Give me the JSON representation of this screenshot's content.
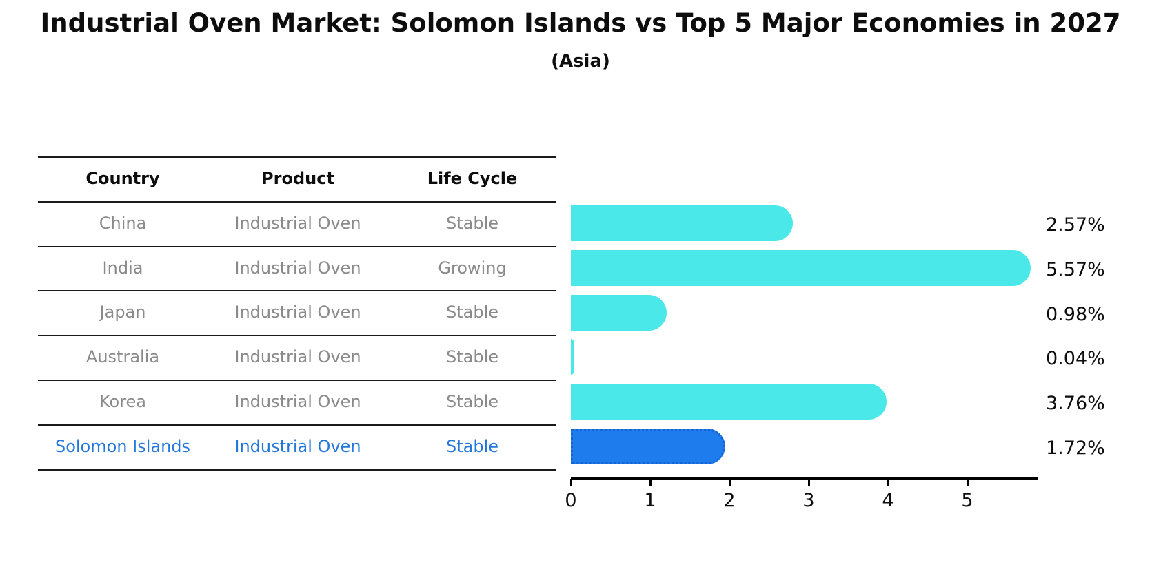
{
  "header": {
    "title": "Industrial Oven Market: Solomon Islands vs Top 5 Major Economies in 2027",
    "subtitle": "(Asia)"
  },
  "table": {
    "headers": [
      "Country",
      "Product",
      "Life Cycle"
    ],
    "rows": [
      {
        "country": "China",
        "product": "Industrial Oven",
        "life_cycle": "Stable",
        "highlight": false
      },
      {
        "country": "India",
        "product": "Industrial Oven",
        "life_cycle": "Growing",
        "highlight": false
      },
      {
        "country": "Japan",
        "product": "Industrial Oven",
        "life_cycle": "Stable",
        "highlight": false
      },
      {
        "country": "Australia",
        "product": "Industrial Oven",
        "life_cycle": "Stable",
        "highlight": false
      },
      {
        "country": "Korea",
        "product": "Industrial Oven",
        "life_cycle": "Stable",
        "highlight": false
      },
      {
        "country": "Solomon Islands",
        "product": "Industrial Oven",
        "life_cycle": "Stable",
        "highlight": true
      }
    ]
  },
  "chart_data": {
    "type": "bar",
    "orientation": "horizontal",
    "title": "Industrial Oven Market: Solomon Islands vs Top 5 Major Economies in 2027 (Asia)",
    "categories": [
      "China",
      "India",
      "Japan",
      "Australia",
      "Korea",
      "Solomon Islands"
    ],
    "values": [
      2.57,
      5.57,
      0.98,
      0.04,
      3.76,
      1.72
    ],
    "value_labels": [
      "2.57%",
      "5.57%",
      "0.98%",
      "0.04%",
      "3.76%",
      "1.72%"
    ],
    "xticks": [
      0,
      1,
      2,
      3,
      4,
      5
    ],
    "xlim": [
      0,
      5.89
    ],
    "grid": false,
    "legend": "none",
    "bar_color": "#4ae8e8",
    "highlight_color": "#1e7cec",
    "highlight_border_color": "#1563d2",
    "highlight_index": 5,
    "highlight_text_color": "#2478db"
  }
}
